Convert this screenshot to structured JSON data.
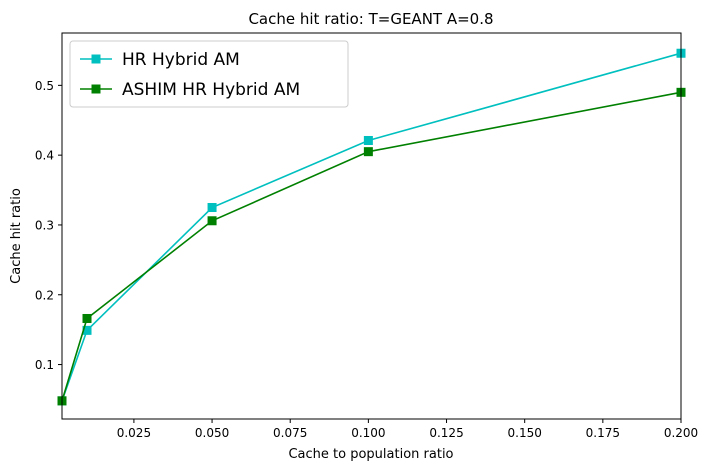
{
  "chart_data": {
    "type": "line",
    "title": "Cache hit ratio: T=GEANT A=0.8",
    "xlabel": "Cache to population ratio",
    "ylabel": "Cache hit ratio",
    "xlim": [
      0.002,
      0.2
    ],
    "ylim": [
      0.022,
      0.575
    ],
    "xticks": [
      "0.025",
      "0.050",
      "0.075",
      "0.100",
      "0.125",
      "0.150",
      "0.175",
      "0.200"
    ],
    "yticks": [
      "0.1",
      "0.2",
      "0.3",
      "0.4",
      "0.5"
    ],
    "grid": false,
    "legend_position": "top-left",
    "x": [
      0.002,
      0.01,
      0.05,
      0.1,
      0.2
    ],
    "series": [
      {
        "name": "HR Hybrid AM",
        "color": "#00bfbf",
        "marker": "square",
        "values": [
          0.048,
          0.149,
          0.325,
          0.421,
          0.546
        ]
      },
      {
        "name": "ASHIM HR Hybrid AM",
        "color": "#008000",
        "marker": "square",
        "values": [
          0.048,
          0.166,
          0.306,
          0.405,
          0.49
        ]
      }
    ]
  }
}
